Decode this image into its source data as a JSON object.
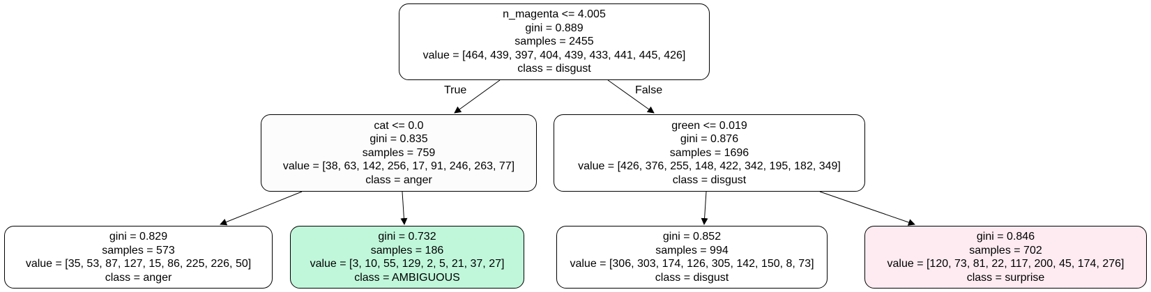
{
  "colors": {
    "root": "#ffffff",
    "cat_node": "#fcfcfc",
    "green_node": "#ffffff",
    "anger_leaf": "#ffffff",
    "ambiguous_leaf": "#c0f7da",
    "disgust_leaf": "#ffffff",
    "surprise_leaf": "#fdebf1",
    "edge": "#000000"
  },
  "edges": {
    "true_label": "True",
    "false_label": "False"
  },
  "nodes": {
    "root": {
      "split": "n_magenta <= 4.005",
      "gini": "gini = 0.889",
      "samples": "samples = 2455",
      "value": "value = [464, 439, 397, 404, 439, 433, 441, 445, 426]",
      "class": "class = disgust"
    },
    "left": {
      "split": "cat <= 0.0",
      "gini": "gini = 0.835",
      "samples": "samples = 759",
      "value": "value = [38, 63, 142, 256, 17, 91, 246, 263, 77]",
      "class": "class = anger"
    },
    "left_left": {
      "gini": "gini = 0.829",
      "samples": "samples = 573",
      "value": "value = [35, 53, 87, 127, 15, 86, 225, 226, 50]",
      "class": "class = anger"
    },
    "left_right": {
      "gini": "gini = 0.732",
      "samples": "samples = 186",
      "value": "value = [3, 10, 55, 129, 2, 5, 21, 37, 27]",
      "class": "class = AMBIGUOUS"
    },
    "right": {
      "split": "green <= 0.019",
      "gini": "gini = 0.876",
      "samples": "samples = 1696",
      "value": "value = [426, 376, 255, 148, 422, 342, 195, 182, 349]",
      "class": "class = disgust"
    },
    "right_left": {
      "gini": "gini = 0.852",
      "samples": "samples = 994",
      "value": "value = [306, 303, 174, 126, 305, 142, 150, 8, 73]",
      "class": "class = disgust"
    },
    "right_right": {
      "gini": "gini = 0.846",
      "samples": "samples = 702",
      "value": "value = [120, 73, 81, 22, 117, 200, 45, 174, 276]",
      "class": "class = surprise"
    }
  }
}
